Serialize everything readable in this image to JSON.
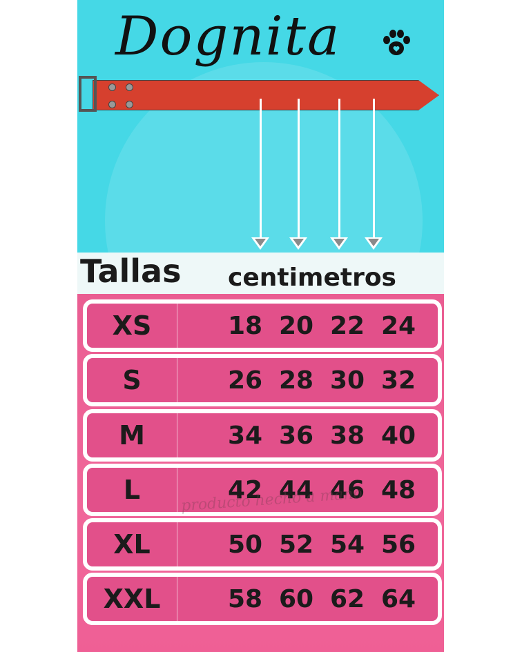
{
  "brand": "Dognita",
  "header": {
    "title": "Tallas",
    "unit": "centimetros"
  },
  "colors": {
    "top": "#45d8e6",
    "pink": "#e2508a",
    "collar": "#d6402e"
  },
  "rows": [
    {
      "size": "XS",
      "values": [
        "18",
        "20",
        "22",
        "24"
      ]
    },
    {
      "size": "S",
      "values": [
        "26",
        "28",
        "30",
        "32"
      ]
    },
    {
      "size": "M",
      "values": [
        "34",
        "36",
        "38",
        "40"
      ]
    },
    {
      "size": "L",
      "values": [
        "42",
        "44",
        "46",
        "48"
      ]
    },
    {
      "size": "XL",
      "values": [
        "50",
        "52",
        "54",
        "56"
      ]
    },
    {
      "size": "XXL",
      "values": [
        "58",
        "60",
        "62",
        "64"
      ]
    }
  ],
  "watermark": "producto hecho a mano"
}
